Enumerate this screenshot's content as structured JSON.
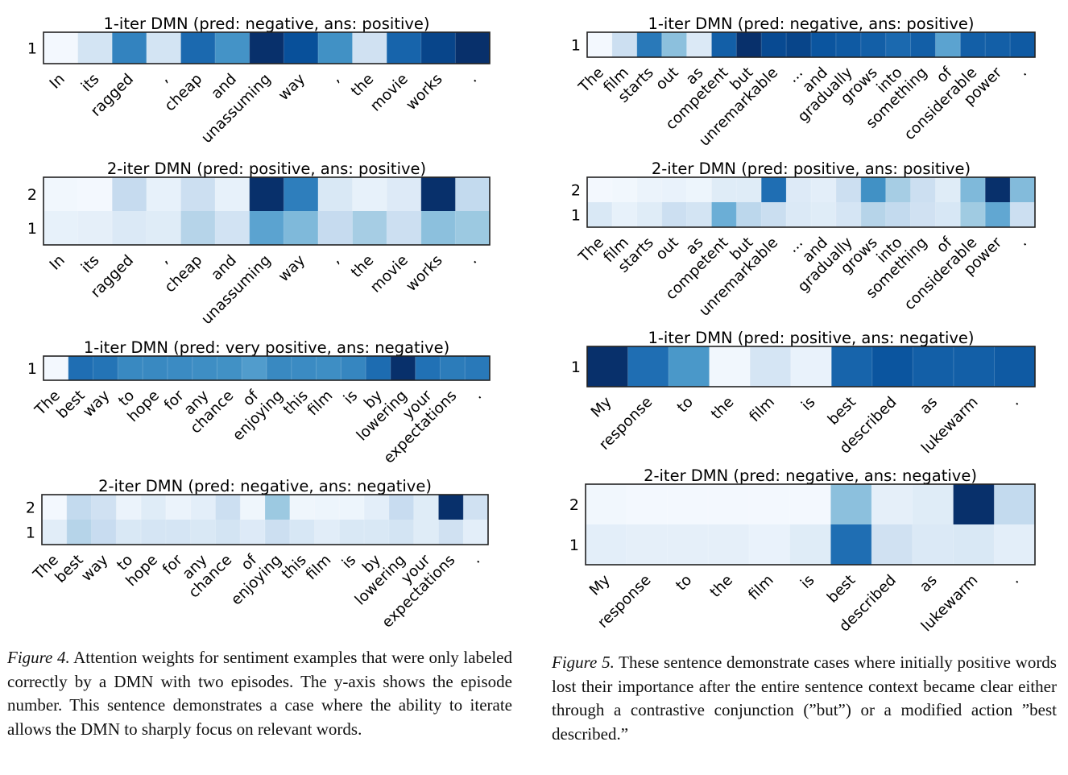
{
  "figures": [
    {
      "id": "figure-4",
      "caption_label": "Figure 4.",
      "caption_text": " Attention weights for sentiment examples that were only labeled correctly by a DMN with two episodes.  The y-axis shows the episode number.  This sentence demonstrates a case where the ability to iterate allows the DMN to sharply focus on relevant words."
    },
    {
      "id": "figure-5",
      "caption_label": "Figure 5.",
      "caption_text": " These sentence demonstrate cases where initially positive words lost their importance after the entire sentence context became clear either through a contrastive conjunction (”but”) or a modified action ”best described.”"
    }
  ],
  "chart_data": [
    {
      "figure": "figure-4",
      "type": "heatmap",
      "title": "1-iter DMN (pred: negative, ans: positive)",
      "ylabel": "episode",
      "rows": [
        "1"
      ],
      "categories": [
        "In",
        "its",
        "ragged",
        ",",
        "cheap",
        "and",
        "unassuming",
        "way",
        ",",
        "the",
        "movie",
        "works",
        "."
      ],
      "values": [
        [
          0.02,
          0.18,
          0.68,
          0.18,
          0.78,
          0.62,
          1.0,
          0.88,
          0.63,
          0.2,
          0.8,
          0.92,
          1.0
        ]
      ],
      "colormap": "Blues"
    },
    {
      "figure": "figure-4",
      "type": "heatmap",
      "title": "2-iter DMN (pred: positive, ans: positive)",
      "ylabel": "episode",
      "rows": [
        "2",
        "1"
      ],
      "categories": [
        "In",
        "its",
        "ragged",
        ",",
        "cheap",
        "and",
        "unassuming",
        "way",
        ",",
        "the",
        "movie",
        "works",
        "."
      ],
      "values": [
        [
          0.03,
          0.02,
          0.25,
          0.08,
          0.22,
          0.08,
          1.0,
          0.7,
          0.15,
          0.08,
          0.13,
          1.0,
          0.26
        ],
        [
          0.08,
          0.09,
          0.14,
          0.12,
          0.3,
          0.19,
          0.55,
          0.45,
          0.25,
          0.35,
          0.22,
          0.42,
          0.38
        ]
      ],
      "colormap": "Blues"
    },
    {
      "figure": "figure-4",
      "type": "heatmap",
      "title": "1-iter DMN (pred: very positive, ans: negative)",
      "ylabel": "episode",
      "rows": [
        "1"
      ],
      "categories": [
        "The",
        "best",
        "way",
        "to",
        "hope",
        "for",
        "any",
        "chance",
        "of",
        "enjoying",
        "this",
        "film",
        "is",
        "by",
        "lowering",
        "your",
        "expectations",
        "."
      ],
      "values": [
        [
          0.02,
          0.76,
          0.74,
          0.66,
          0.66,
          0.65,
          0.64,
          0.63,
          0.58,
          0.66,
          0.65,
          0.64,
          0.67,
          0.77,
          1.0,
          0.75,
          0.71,
          0.72
        ]
      ],
      "colormap": "Blues"
    },
    {
      "figure": "figure-4",
      "type": "heatmap",
      "title": "2-iter DMN (pred: negative, ans: negative)",
      "ylabel": "episode",
      "rows": [
        "2",
        "1"
      ],
      "categories": [
        "The",
        "best",
        "way",
        "to",
        "hope",
        "for",
        "any",
        "chance",
        "of",
        "enjoying",
        "this",
        "film",
        "is",
        "by",
        "lowering",
        "your",
        "expectations",
        "."
      ],
      "values": [
        [
          0.02,
          0.26,
          0.2,
          0.06,
          0.12,
          0.06,
          0.1,
          0.22,
          0.04,
          0.38,
          0.04,
          0.05,
          0.05,
          0.1,
          0.24,
          0.12,
          1.0,
          0.2
        ],
        [
          0.11,
          0.3,
          0.24,
          0.15,
          0.17,
          0.17,
          0.15,
          0.18,
          0.13,
          0.22,
          0.16,
          0.11,
          0.15,
          0.15,
          0.18,
          0.12,
          0.2,
          0.1
        ]
      ],
      "colormap": "Blues"
    },
    {
      "figure": "figure-5",
      "type": "heatmap",
      "title": "1-iter DMN (pred: negative, ans: positive)",
      "ylabel": "episode",
      "rows": [
        "1"
      ],
      "categories": [
        "The",
        "film",
        "starts",
        "out",
        "as",
        "competent",
        "but",
        "unremarkable",
        "...",
        "and",
        "gradually",
        "grows",
        "into",
        "something",
        "of",
        "considerable",
        "power",
        "."
      ],
      "values": [
        [
          0.02,
          0.22,
          0.72,
          0.42,
          0.14,
          0.82,
          1.0,
          0.9,
          0.92,
          0.86,
          0.84,
          0.82,
          0.78,
          0.82,
          0.55,
          0.82,
          0.82,
          0.84
        ]
      ],
      "colormap": "Blues"
    },
    {
      "figure": "figure-5",
      "type": "heatmap",
      "title": "2-iter DMN (pred: positive, ans: positive)",
      "ylabel": "episode",
      "rows": [
        "2",
        "1"
      ],
      "categories": [
        "The",
        "film",
        "starts",
        "out",
        "as",
        "competent",
        "but",
        "unremarkable",
        "...",
        "and",
        "gradually",
        "grows",
        "into",
        "something",
        "of",
        "considerable",
        "power",
        "."
      ],
      "values": [
        [
          0.02,
          0.03,
          0.06,
          0.07,
          0.05,
          0.12,
          0.12,
          0.76,
          0.13,
          0.1,
          0.22,
          0.63,
          0.35,
          0.22,
          0.12,
          0.45,
          1.0,
          0.44
        ],
        [
          0.15,
          0.08,
          0.12,
          0.22,
          0.18,
          0.5,
          0.28,
          0.23,
          0.14,
          0.12,
          0.17,
          0.3,
          0.26,
          0.2,
          0.16,
          0.37,
          0.53,
          0.22
        ]
      ],
      "colormap": "Blues"
    },
    {
      "figure": "figure-5",
      "type": "heatmap",
      "title": "1-iter DMN (pred: positive, ans: negative)",
      "ylabel": "episode",
      "rows": [
        "1"
      ],
      "categories": [
        "My",
        "response",
        "to",
        "the",
        "film",
        "is",
        "best",
        "described",
        "as",
        "lukewarm",
        "."
      ],
      "values": [
        [
          1.0,
          0.76,
          0.6,
          0.03,
          0.17,
          0.07,
          0.8,
          0.86,
          0.82,
          0.82,
          0.84
        ]
      ],
      "colormap": "Blues"
    },
    {
      "figure": "figure-5",
      "type": "heatmap",
      "title": "2-iter DMN (pred: negative, ans: negative)",
      "ylabel": "episode",
      "rows": [
        "2",
        "1"
      ],
      "categories": [
        "My",
        "response",
        "to",
        "the",
        "film",
        "is",
        "best",
        "described",
        "as",
        "lukewarm",
        "."
      ],
      "values": [
        [
          0.03,
          0.02,
          0.02,
          0.02,
          0.02,
          0.02,
          0.42,
          0.09,
          0.12,
          1.0,
          0.26
        ],
        [
          0.1,
          0.09,
          0.09,
          0.09,
          0.07,
          0.12,
          0.76,
          0.2,
          0.14,
          0.15,
          0.1
        ]
      ],
      "colormap": "Blues"
    }
  ]
}
